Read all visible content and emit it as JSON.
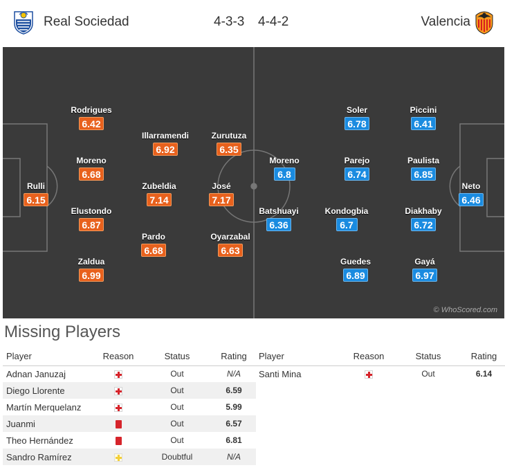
{
  "header": {
    "home_team": "Real Sociedad",
    "away_team": "Valencia",
    "home_formation": "4-3-3",
    "away_formation": "4-4-2",
    "home_crest_icon": "real-sociedad-crest-icon",
    "away_crest_icon": "valencia-crest-icon"
  },
  "colors": {
    "home_rating": "#e8611d",
    "away_rating": "#1a8be0",
    "pitch": "#3a3a3a",
    "status_rating": "#c95f00"
  },
  "pitch": {
    "watermark": "© WhoScored.com",
    "home_players": [
      {
        "name": "Rulli",
        "rating": "6.15"
      },
      {
        "name": "Rodrigues",
        "rating": "6.42"
      },
      {
        "name": "Moreno",
        "rating": "6.68"
      },
      {
        "name": "Elustondo",
        "rating": "6.87"
      },
      {
        "name": "Zaldua",
        "rating": "6.99"
      },
      {
        "name": "Illarramendi",
        "rating": "6.92"
      },
      {
        "name": "Zubeldia",
        "rating": "7.14"
      },
      {
        "name": "Pardo",
        "rating": "6.68"
      },
      {
        "name": "Zurutuza",
        "rating": "6.35"
      },
      {
        "name": "José",
        "rating": "7.17"
      },
      {
        "name": "Oyarzabal",
        "rating": "6.63"
      }
    ],
    "away_players": [
      {
        "name": "Neto",
        "rating": "6.46"
      },
      {
        "name": "Piccini",
        "rating": "6.41"
      },
      {
        "name": "Paulista",
        "rating": "6.85"
      },
      {
        "name": "Diakhaby",
        "rating": "6.72"
      },
      {
        "name": "Gayá",
        "rating": "6.97"
      },
      {
        "name": "Soler",
        "rating": "6.78"
      },
      {
        "name": "Parejo",
        "rating": "6.74"
      },
      {
        "name": "Kondogbia",
        "rating": "6.7"
      },
      {
        "name": "Guedes",
        "rating": "6.89"
      },
      {
        "name": "Moreno",
        "rating": "6.8"
      },
      {
        "name": "Batshuayi",
        "rating": "6.36"
      }
    ]
  },
  "missing": {
    "title": "Missing Players",
    "headers": {
      "player": "Player",
      "reason": "Reason",
      "status": "Status",
      "rating": "Rating"
    },
    "home": [
      {
        "player": "Adnan Januzaj",
        "reason_icon": "injury-icon",
        "status": "Out",
        "rating": "N/A"
      },
      {
        "player": "Diego Llorente",
        "reason_icon": "injury-icon",
        "status": "Out",
        "rating": "6.59"
      },
      {
        "player": "Martín Merquelanz",
        "reason_icon": "injury-icon",
        "status": "Out",
        "rating": "5.99"
      },
      {
        "player": "Juanmi",
        "reason_icon": "red-card-icon",
        "status": "Out",
        "rating": "6.57"
      },
      {
        "player": "Theo Hernández",
        "reason_icon": "red-card-icon",
        "status": "Out",
        "rating": "6.81"
      },
      {
        "player": "Sandro Ramírez",
        "reason_icon": "doubtful-icon",
        "status": "Doubtful",
        "rating": "N/A"
      }
    ],
    "away": [
      {
        "player": "Santi Mina",
        "reason_icon": "injury-icon",
        "status": "Out",
        "rating": "6.14"
      }
    ]
  }
}
